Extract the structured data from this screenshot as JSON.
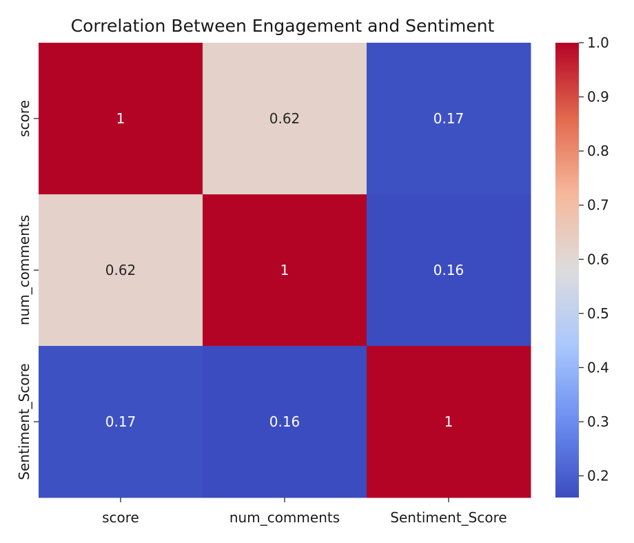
{
  "chart_data": {
    "type": "heatmap",
    "title": "Correlation Between Engagement and Sentiment",
    "xlabel": "",
    "ylabel": "",
    "x_categories": [
      "score",
      "num_comments",
      "Sentiment_Score"
    ],
    "y_categories": [
      "score",
      "num_comments",
      "Sentiment_Score"
    ],
    "values": [
      [
        1,
        0.62,
        0.17
      ],
      [
        0.62,
        1,
        0.16
      ],
      [
        0.17,
        0.16,
        1
      ]
    ],
    "cell_labels": [
      [
        "1",
        "0.62",
        "0.17"
      ],
      [
        "0.62",
        "1",
        "0.16"
      ],
      [
        "0.17",
        "0.16",
        "1"
      ]
    ],
    "colormap": "coolwarm",
    "colormap_stops": [
      "#3b4cc0",
      "#6b8df0",
      "#aac7fd",
      "#dddcdc",
      "#f6b89c",
      "#e2694e",
      "#b40426"
    ],
    "color_range": [
      0.16,
      1.0
    ],
    "colorbar_ticks": [
      0.2,
      0.3,
      0.4,
      0.5,
      0.6,
      0.7,
      0.8,
      0.9,
      1.0
    ],
    "colorbar_tick_labels": [
      "0.2",
      "0.3",
      "0.4",
      "0.5",
      "0.6",
      "0.7",
      "0.8",
      "0.9",
      "1.0"
    ],
    "annotation_colors": {
      "light_text": "#ffffff",
      "dark_text": "#262626"
    },
    "grid": false,
    "legend": "colorbar-right"
  }
}
